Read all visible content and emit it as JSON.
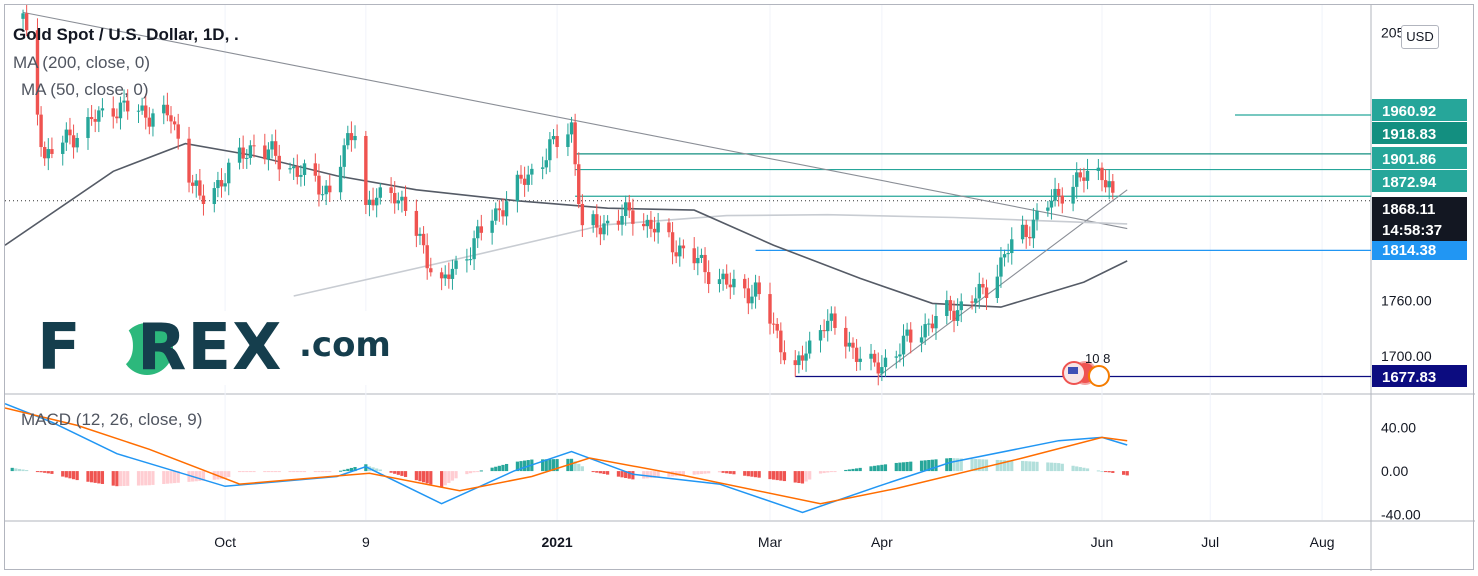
{
  "legend": {
    "title": "Gold Spot / U.S. Dollar, 1D, .",
    "ma200": "MA (200, close, 0)",
    "ma50": "MA (50, close, 0)",
    "macd": "MACD (12, 26, close, 9)"
  },
  "currency": "USD",
  "logo": {
    "brand": "FOREX",
    "suffix": ".com"
  },
  "event_marker": "10 8",
  "price_axis": {
    "ticks": [
      {
        "value": 2050,
        "label": "2050.00"
      },
      {
        "value": 1760,
        "label": "1760.00"
      },
      {
        "value": 1700,
        "label": "1700.00"
      }
    ],
    "ylim": [
      1660,
      2080
    ]
  },
  "macd_axis": {
    "ticks": [
      {
        "value": 40,
        "label": "40.00"
      },
      {
        "value": 0,
        "label": "0.00"
      },
      {
        "value": -40,
        "label": "-40.00"
      }
    ],
    "ylim": [
      -45,
      70
    ]
  },
  "time_axis": {
    "start": "2020-08-01",
    "end": "2021-08-14",
    "labels": [
      {
        "date": "2020-10-01",
        "label": "Oct"
      },
      {
        "date": "2020-11-09",
        "label": "9"
      },
      {
        "date": "2021-01-01",
        "label": "2021"
      },
      {
        "date": "2021-03-01",
        "label": "Mar"
      },
      {
        "date": "2021-04-01",
        "label": "Apr"
      },
      {
        "date": "2021-06-01",
        "label": "Jun"
      },
      {
        "date": "2021-07-01",
        "label": "Jul"
      },
      {
        "date": "2021-08-01",
        "label": "Aug"
      }
    ]
  },
  "colors": {
    "up": "#26a69a",
    "down": "#ef5350",
    "ma50": "#555b66",
    "ma200": "#c8ccd2",
    "trendline": "#8a8e96",
    "macd_line": "#2196f3",
    "signal_line": "#ff6d00",
    "level_green": "#26a69a",
    "level_blue": "#2196f3",
    "level_navy": "#0c0c80"
  },
  "chart_data": {
    "type": "candlestick",
    "symbol": "Gold Spot / U.S. Dollar",
    "timeframe": "1D",
    "current_price": {
      "value": 1868.11,
      "label": "1868.11",
      "countdown": "14:58:37"
    },
    "price_levels": [
      {
        "value": 1960.92,
        "label": "1960.92",
        "style": "green"
      },
      {
        "value": 1918.83,
        "label": "1918.83",
        "style": "teal",
        "start": "2021-01-06"
      },
      {
        "value": 1901.86,
        "label": "1901.86",
        "style": "green",
        "start": "2021-01-06"
      },
      {
        "value": 1872.94,
        "label": "1872.94",
        "style": "green",
        "start": "2021-01-06"
      },
      {
        "value": 1814.38,
        "label": "1814.38",
        "style": "blue",
        "start": "2021-02-25"
      },
      {
        "value": 1677.83,
        "label": "1677.83",
        "style": "navy",
        "start": "2021-03-08"
      }
    ],
    "trendlines": [
      {
        "from": {
          "date": "2020-08-06",
          "value": 2072
        },
        "to": {
          "date": "2021-06-08",
          "value": 1838
        }
      },
      {
        "from": {
          "date": "2021-03-31",
          "value": 1677.83
        },
        "to": {
          "date": "2021-06-08",
          "value": 1880
        }
      }
    ],
    "price_path": [
      {
        "date": "2020-08-06",
        "value": 2065
      },
      {
        "date": "2020-08-12",
        "value": 1915
      },
      {
        "date": "2020-08-20",
        "value": 1940
      },
      {
        "date": "2020-08-31",
        "value": 1970
      },
      {
        "date": "2020-09-16",
        "value": 1958
      },
      {
        "date": "2020-09-24",
        "value": 1866
      },
      {
        "date": "2020-10-09",
        "value": 1930
      },
      {
        "date": "2020-10-30",
        "value": 1878
      },
      {
        "date": "2020-11-06",
        "value": 1951
      },
      {
        "date": "2020-11-09",
        "value": 1862
      },
      {
        "date": "2020-11-17",
        "value": 1880
      },
      {
        "date": "2020-11-30",
        "value": 1776
      },
      {
        "date": "2020-12-16",
        "value": 1860
      },
      {
        "date": "2021-01-05",
        "value": 1950
      },
      {
        "date": "2021-01-08",
        "value": 1835
      },
      {
        "date": "2021-01-22",
        "value": 1855
      },
      {
        "date": "2021-02-05",
        "value": 1813
      },
      {
        "date": "2021-02-18",
        "value": 1775
      },
      {
        "date": "2021-02-25",
        "value": 1770
      },
      {
        "date": "2021-03-08",
        "value": 1683
      },
      {
        "date": "2021-03-16",
        "value": 1740
      },
      {
        "date": "2021-03-30",
        "value": 1685
      },
      {
        "date": "2021-04-13",
        "value": 1733
      },
      {
        "date": "2021-04-29",
        "value": 1768
      },
      {
        "date": "2021-05-06",
        "value": 1815
      },
      {
        "date": "2021-05-21",
        "value": 1880
      },
      {
        "date": "2021-06-01",
        "value": 1903
      },
      {
        "date": "2021-06-04",
        "value": 1868
      }
    ],
    "series": [
      {
        "name": "MA (200, close, 0)",
        "points": [
          {
            "date": "2020-10-20",
            "value": 1765
          },
          {
            "date": "2020-12-10",
            "value": 1810
          },
          {
            "date": "2021-01-14",
            "value": 1842
          },
          {
            "date": "2021-02-17",
            "value": 1852
          },
          {
            "date": "2021-03-17",
            "value": 1853
          },
          {
            "date": "2021-04-21",
            "value": 1850
          },
          {
            "date": "2021-05-25",
            "value": 1845
          },
          {
            "date": "2021-06-08",
            "value": 1843
          }
        ]
      },
      {
        "name": "MA (50, close, 0)",
        "points": [
          {
            "date": "2020-08-01",
            "value": 1820
          },
          {
            "date": "2020-08-31",
            "value": 1900
          },
          {
            "date": "2020-09-20",
            "value": 1930
          },
          {
            "date": "2020-10-09",
            "value": 1917
          },
          {
            "date": "2020-11-01",
            "value": 1895
          },
          {
            "date": "2020-11-23",
            "value": 1880
          },
          {
            "date": "2020-12-21",
            "value": 1868
          },
          {
            "date": "2021-01-15",
            "value": 1860
          },
          {
            "date": "2021-02-08",
            "value": 1858
          },
          {
            "date": "2021-03-02",
            "value": 1820
          },
          {
            "date": "2021-03-26",
            "value": 1784
          },
          {
            "date": "2021-04-15",
            "value": 1757
          },
          {
            "date": "2021-05-04",
            "value": 1753
          },
          {
            "date": "2021-05-27",
            "value": 1780
          },
          {
            "date": "2021-06-08",
            "value": 1803
          }
        ]
      }
    ],
    "macd": {
      "macd_line": [
        {
          "date": "2020-08-01",
          "value": 62
        },
        {
          "date": "2020-08-14",
          "value": 45
        },
        {
          "date": "2020-09-01",
          "value": 16
        },
        {
          "date": "2020-10-01",
          "value": -14
        },
        {
          "date": "2020-11-01",
          "value": -5
        },
        {
          "date": "2020-11-09",
          "value": 4
        },
        {
          "date": "2020-11-30",
          "value": -30
        },
        {
          "date": "2020-12-20",
          "value": 0
        },
        {
          "date": "2021-01-05",
          "value": 18
        },
        {
          "date": "2021-01-22",
          "value": -3
        },
        {
          "date": "2021-02-15",
          "value": -12
        },
        {
          "date": "2021-03-10",
          "value": -38
        },
        {
          "date": "2021-03-31",
          "value": -14
        },
        {
          "date": "2021-04-20",
          "value": 8
        },
        {
          "date": "2021-05-20",
          "value": 28
        },
        {
          "date": "2021-06-01",
          "value": 31
        },
        {
          "date": "2021-06-08",
          "value": 24
        }
      ],
      "signal_line": [
        {
          "date": "2020-08-01",
          "value": 58
        },
        {
          "date": "2020-08-21",
          "value": 42
        },
        {
          "date": "2020-09-10",
          "value": 20
        },
        {
          "date": "2020-10-05",
          "value": -12
        },
        {
          "date": "2020-11-10",
          "value": -2
        },
        {
          "date": "2020-12-05",
          "value": -18
        },
        {
          "date": "2020-12-25",
          "value": -5
        },
        {
          "date": "2021-01-10",
          "value": 12
        },
        {
          "date": "2021-02-05",
          "value": -4
        },
        {
          "date": "2021-03-15",
          "value": -30
        },
        {
          "date": "2021-04-05",
          "value": -16
        },
        {
          "date": "2021-05-10",
          "value": 12
        },
        {
          "date": "2021-06-01",
          "value": 31
        },
        {
          "date": "2021-06-08",
          "value": 28
        }
      ]
    }
  }
}
